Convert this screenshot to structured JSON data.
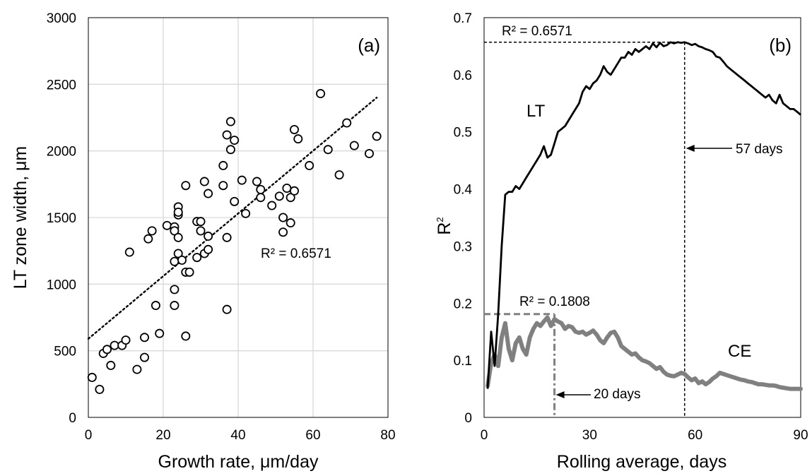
{
  "chart_data": [
    {
      "type": "scatter",
      "panel_label": "(a)",
      "xlabel": "Growth rate, μm/day",
      "ylabel": "LT zone width, μm",
      "xlim": [
        0,
        80
      ],
      "ylim": [
        0,
        3000
      ],
      "x_ticks": [
        "0",
        "20",
        "40",
        "60",
        "80"
      ],
      "y_ticks": [
        "0",
        "500",
        "1000",
        "1500",
        "2000",
        "2500",
        "3000"
      ],
      "grid": true,
      "trendline": {
        "style": "dotted",
        "from": [
          0,
          590
        ],
        "to": [
          77,
          2400
        ]
      },
      "r2_label": "R² = 0.6571",
      "points": [
        [
          1,
          300
        ],
        [
          3,
          210
        ],
        [
          4,
          480
        ],
        [
          5,
          510
        ],
        [
          6,
          390
        ],
        [
          7,
          540
        ],
        [
          9,
          540
        ],
        [
          10,
          580
        ],
        [
          11,
          1240
        ],
        [
          13,
          360
        ],
        [
          15,
          450
        ],
        [
          15,
          600
        ],
        [
          16,
          1340
        ],
        [
          17,
          1400
        ],
        [
          18,
          840
        ],
        [
          19,
          630
        ],
        [
          21,
          1440
        ],
        [
          23,
          1430
        ],
        [
          23,
          1400
        ],
        [
          23,
          1170
        ],
        [
          23,
          840
        ],
        [
          23,
          960
        ],
        [
          24,
          1520
        ],
        [
          24,
          1580
        ],
        [
          24,
          1350
        ],
        [
          24,
          1230
        ],
        [
          24,
          1540
        ],
        [
          25,
          1180
        ],
        [
          26,
          1090
        ],
        [
          26,
          1740
        ],
        [
          26,
          610
        ],
        [
          27,
          1090
        ],
        [
          29,
          1470
        ],
        [
          29,
          1200
        ],
        [
          30,
          1400
        ],
        [
          30,
          1470
        ],
        [
          31,
          1230
        ],
        [
          31,
          1770
        ],
        [
          32,
          1680
        ],
        [
          32,
          1360
        ],
        [
          32,
          1260
        ],
        [
          36,
          1890
        ],
        [
          36,
          1740
        ],
        [
          37,
          2120
        ],
        [
          37,
          1350
        ],
        [
          37,
          810
        ],
        [
          38,
          2220
        ],
        [
          38,
          2010
        ],
        [
          39,
          2080
        ],
        [
          39,
          1620
        ],
        [
          41,
          1780
        ],
        [
          42,
          1530
        ],
        [
          45,
          1770
        ],
        [
          46,
          1710
        ],
        [
          46,
          1650
        ],
        [
          49,
          1590
        ],
        [
          51,
          1660
        ],
        [
          52,
          1500
        ],
        [
          52,
          1390
        ],
        [
          53,
          1720
        ],
        [
          54,
          1650
        ],
        [
          54,
          1460
        ],
        [
          55,
          1700
        ],
        [
          55,
          2160
        ],
        [
          56,
          2090
        ],
        [
          59,
          1890
        ],
        [
          62,
          2430
        ],
        [
          64,
          2010
        ],
        [
          67,
          1820
        ],
        [
          69,
          2210
        ],
        [
          71,
          2040
        ],
        [
          75,
          1980
        ],
        [
          77,
          2110
        ]
      ]
    },
    {
      "type": "line",
      "panel_label": "(b)",
      "xlabel": "Rolling average, days",
      "ylabel": "R",
      "ylabel_sup": "2",
      "xlim": [
        0,
        90
      ],
      "ylim": [
        0,
        0.7
      ],
      "x_ticks": [
        "0",
        "30",
        "60",
        "90"
      ],
      "y_ticks": [
        "0",
        "0.1",
        "0.2",
        "0.3",
        "0.4",
        "0.5",
        "0.6",
        "0.7"
      ],
      "grid": false,
      "series": [
        {
          "name": "LT",
          "color": "#000000",
          "points": [
            [
              1,
              0.05
            ],
            [
              2,
              0.15
            ],
            [
              3,
              0.09
            ],
            [
              4,
              0.18
            ],
            [
              5,
              0.3
            ],
            [
              6,
              0.39
            ],
            [
              7,
              0.395
            ],
            [
              8,
              0.395
            ],
            [
              9,
              0.405
            ],
            [
              10,
              0.4
            ],
            [
              11,
              0.41
            ],
            [
              12,
              0.42
            ],
            [
              13,
              0.43
            ],
            [
              14,
              0.44
            ],
            [
              15,
              0.45
            ],
            [
              16,
              0.46
            ],
            [
              17,
              0.475
            ],
            [
              18,
              0.455
            ],
            [
              19,
              0.46
            ],
            [
              20,
              0.48
            ],
            [
              21,
              0.5
            ],
            [
              22,
              0.505
            ],
            [
              23,
              0.51
            ],
            [
              24,
              0.52
            ],
            [
              25,
              0.53
            ],
            [
              26,
              0.54
            ],
            [
              27,
              0.55
            ],
            [
              28,
              0.57
            ],
            [
              29,
              0.58
            ],
            [
              30,
              0.575
            ],
            [
              31,
              0.585
            ],
            [
              32,
              0.59
            ],
            [
              33,
              0.6
            ],
            [
              34,
              0.615
            ],
            [
              35,
              0.605
            ],
            [
              36,
              0.6
            ],
            [
              37,
              0.61
            ],
            [
              38,
              0.62
            ],
            [
              39,
              0.63
            ],
            [
              40,
              0.63
            ],
            [
              41,
              0.64
            ],
            [
              42,
              0.635
            ],
            [
              43,
              0.645
            ],
            [
              44,
              0.64
            ],
            [
              45,
              0.645
            ],
            [
              46,
              0.65
            ],
            [
              47,
              0.645
            ],
            [
              48,
              0.655
            ],
            [
              49,
              0.648
            ],
            [
              50,
              0.656
            ],
            [
              51,
              0.65
            ],
            [
              52,
              0.652
            ],
            [
              53,
              0.657
            ],
            [
              54,
              0.655
            ],
            [
              55,
              0.657
            ],
            [
              56,
              0.656
            ],
            [
              57,
              0.657
            ],
            [
              58,
              0.655
            ],
            [
              59,
              0.652
            ],
            [
              60,
              0.654
            ],
            [
              61,
              0.65
            ],
            [
              62,
              0.648
            ],
            [
              63,
              0.645
            ],
            [
              64,
              0.643
            ],
            [
              65,
              0.64
            ],
            [
              66,
              0.632
            ],
            [
              67,
              0.63
            ],
            [
              68,
              0.623
            ],
            [
              69,
              0.615
            ],
            [
              70,
              0.61
            ],
            [
              71,
              0.605
            ],
            [
              72,
              0.6
            ],
            [
              73,
              0.595
            ],
            [
              74,
              0.59
            ],
            [
              75,
              0.585
            ],
            [
              76,
              0.58
            ],
            [
              77,
              0.575
            ],
            [
              78,
              0.57
            ],
            [
              79,
              0.565
            ],
            [
              80,
              0.56
            ],
            [
              81,
              0.565
            ],
            [
              82,
              0.555
            ],
            [
              83,
              0.55
            ],
            [
              84,
              0.565
            ],
            [
              85,
              0.55
            ],
            [
              86,
              0.545
            ],
            [
              87,
              0.54
            ],
            [
              88,
              0.54
            ],
            [
              89,
              0.535
            ],
            [
              90,
              0.53
            ]
          ]
        },
        {
          "name": "CE",
          "color": "#808080",
          "points": [
            [
              1,
              0.055
            ],
            [
              2,
              0.095
            ],
            [
              3,
              0.11
            ],
            [
              4,
              0.09
            ],
            [
              5,
              0.14
            ],
            [
              6,
              0.165
            ],
            [
              7,
              0.12
            ],
            [
              8,
              0.1
            ],
            [
              9,
              0.13
            ],
            [
              10,
              0.14
            ],
            [
              11,
              0.12
            ],
            [
              12,
              0.11
            ],
            [
              13,
              0.14
            ],
            [
              14,
              0.155
            ],
            [
              15,
              0.165
            ],
            [
              16,
              0.16
            ],
            [
              17,
              0.168
            ],
            [
              18,
              0.175
            ],
            [
              19,
              0.16
            ],
            [
              20,
              0.172
            ],
            [
              21,
              0.168
            ],
            [
              22,
              0.165
            ],
            [
              23,
              0.155
            ],
            [
              24,
              0.16
            ],
            [
              25,
              0.158
            ],
            [
              26,
              0.15
            ],
            [
              27,
              0.148
            ],
            [
              28,
              0.15
            ],
            [
              29,
              0.145
            ],
            [
              30,
              0.148
            ],
            [
              31,
              0.152
            ],
            [
              32,
              0.145
            ],
            [
              33,
              0.135
            ],
            [
              34,
              0.13
            ],
            [
              35,
              0.14
            ],
            [
              36,
              0.148
            ],
            [
              37,
              0.15
            ],
            [
              38,
              0.14
            ],
            [
              39,
              0.125
            ],
            [
              40,
              0.12
            ],
            [
              41,
              0.115
            ],
            [
              42,
              0.11
            ],
            [
              43,
              0.112
            ],
            [
              44,
              0.105
            ],
            [
              45,
              0.1
            ],
            [
              46,
              0.098
            ],
            [
              47,
              0.095
            ],
            [
              48,
              0.09
            ],
            [
              49,
              0.085
            ],
            [
              50,
              0.088
            ],
            [
              51,
              0.08
            ],
            [
              52,
              0.075
            ],
            [
              53,
              0.073
            ],
            [
              54,
              0.072
            ],
            [
              55,
              0.075
            ],
            [
              56,
              0.078
            ],
            [
              57,
              0.076
            ],
            [
              58,
              0.07
            ],
            [
              59,
              0.065
            ],
            [
              60,
              0.068
            ],
            [
              61,
              0.06
            ],
            [
              62,
              0.063
            ],
            [
              63,
              0.058
            ],
            [
              64,
              0.062
            ],
            [
              65,
              0.068
            ],
            [
              66,
              0.072
            ],
            [
              67,
              0.078
            ],
            [
              68,
              0.076
            ],
            [
              69,
              0.074
            ],
            [
              70,
              0.072
            ],
            [
              71,
              0.07
            ],
            [
              72,
              0.068
            ],
            [
              73,
              0.066
            ],
            [
              74,
              0.065
            ],
            [
              75,
              0.063
            ],
            [
              76,
              0.062
            ],
            [
              77,
              0.06
            ],
            [
              78,
              0.058
            ],
            [
              79,
              0.058
            ],
            [
              80,
              0.057
            ],
            [
              81,
              0.056
            ],
            [
              82,
              0.056
            ],
            [
              83,
              0.055
            ],
            [
              84,
              0.053
            ],
            [
              85,
              0.052
            ],
            [
              86,
              0.051
            ],
            [
              87,
              0.05
            ],
            [
              88,
              0.05
            ],
            [
              89,
              0.05
            ],
            [
              90,
              0.05
            ]
          ]
        }
      ],
      "annotations": {
        "lt_r2_label": "R² = 0.6571",
        "lt_r2_value": 0.6571,
        "lt_days_label": "57 days",
        "lt_days_value": 57,
        "ce_r2_label": "R² = 0.1808",
        "ce_r2_value": 0.1808,
        "ce_days_label": "20 days",
        "ce_days_value": 20
      }
    }
  ]
}
